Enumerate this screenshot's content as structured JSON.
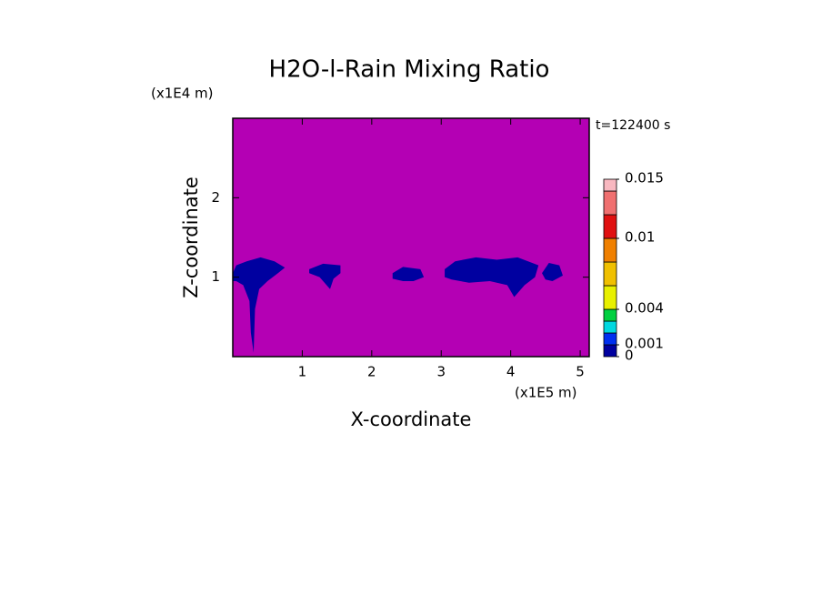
{
  "chart_data": {
    "type": "contour",
    "title": "H2O-l-Rain Mixing Ratio",
    "y_unit": "(x1E4 m)",
    "x_unit": "(x1E5 m)",
    "time_label": "t=122400 s",
    "xlabel": "X-coordinate",
    "ylabel": "Z-coordinate",
    "xlim": [
      0,
      5.13
    ],
    "ylim": [
      0,
      3
    ],
    "xticks": [
      1,
      2,
      3,
      4,
      5
    ],
    "yticks": [
      1,
      2
    ],
    "background_color": "#b400b4",
    "cells": [
      {
        "value": 0.0005,
        "x": [
          0,
          0.05,
          0.2,
          0.4,
          0.6,
          0.75,
          0.65,
          0.5,
          0.38,
          0.32,
          0.3,
          0.26,
          0.24,
          0.15,
          0.05,
          0
        ],
        "z": [
          1.05,
          1.15,
          1.2,
          1.25,
          1.2,
          1.12,
          1.05,
          0.95,
          0.85,
          0.6,
          0.05,
          0.3,
          0.7,
          0.9,
          0.95,
          0.95
        ]
      },
      {
        "value": 0.0005,
        "x": [
          1.1,
          1.3,
          1.55,
          1.55,
          1.45,
          1.4,
          1.35,
          1.25,
          1.1
        ],
        "z": [
          1.1,
          1.17,
          1.15,
          1.05,
          0.98,
          0.85,
          0.9,
          1.0,
          1.05
        ]
      },
      {
        "value": 0.0005,
        "x": [
          2.3,
          2.45,
          2.7,
          2.75,
          2.6,
          2.45,
          2.3
        ],
        "z": [
          1.05,
          1.13,
          1.1,
          1.0,
          0.95,
          0.95,
          0.98
        ]
      },
      {
        "value": 0.0005,
        "x": [
          3.05,
          3.2,
          3.5,
          3.8,
          4.1,
          4.4,
          4.35,
          4.2,
          4.05,
          3.95,
          3.7,
          3.4,
          3.15,
          3.05
        ],
        "z": [
          1.1,
          1.2,
          1.25,
          1.22,
          1.25,
          1.15,
          1.0,
          0.9,
          0.75,
          0.9,
          0.95,
          0.93,
          0.97,
          1.0
        ]
      },
      {
        "value": 0.0005,
        "x": [
          4.45,
          4.55,
          4.7,
          4.75,
          4.6,
          4.5
        ],
        "z": [
          1.05,
          1.18,
          1.15,
          1.02,
          0.95,
          0.97
        ]
      }
    ],
    "colorbar": {
      "levels": [
        0,
        0.001,
        0.002,
        0.003,
        0.004,
        0.006,
        0.008,
        0.01,
        0.012,
        0.014,
        0.015
      ],
      "colors": [
        "#0000a0",
        "#0030f0",
        "#00d8e0",
        "#00d040",
        "#e8f000",
        "#f0c000",
        "#f08000",
        "#e01010",
        "#f07070",
        "#f8b8c0"
      ],
      "ticks": [
        0,
        0.001,
        0.004,
        0.01,
        0.015
      ]
    }
  }
}
